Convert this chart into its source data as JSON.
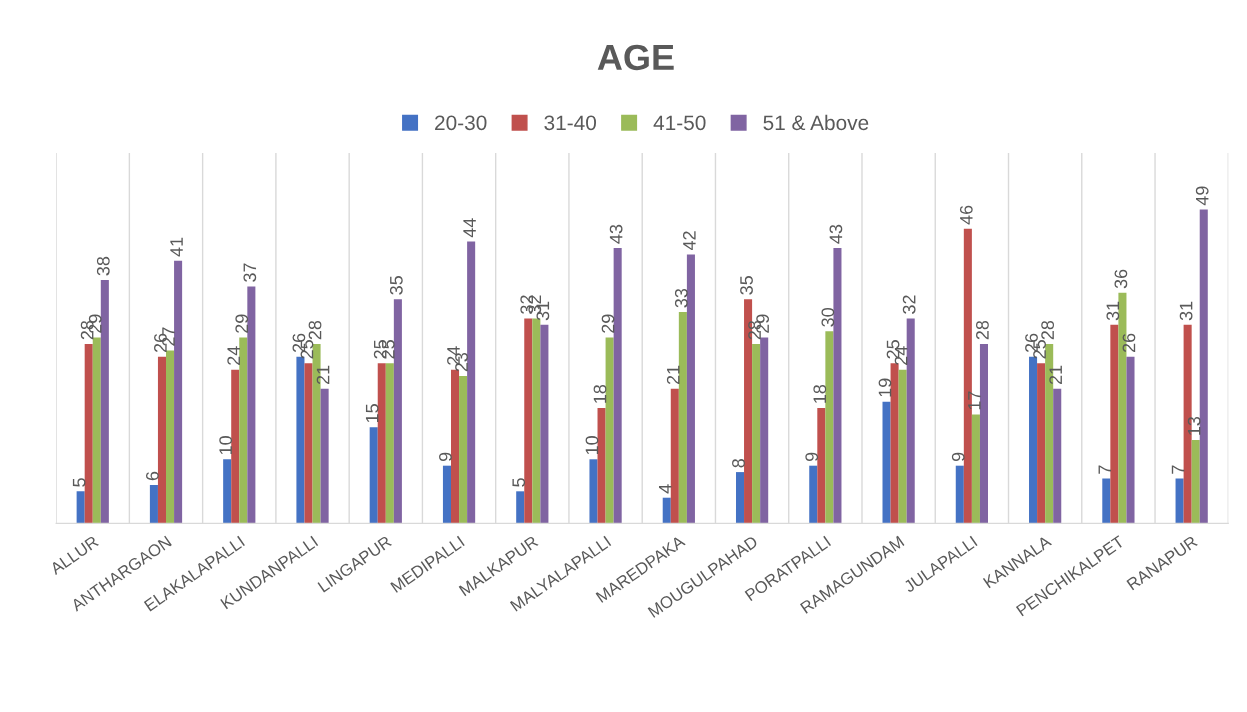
{
  "chart_data": {
    "type": "bar",
    "title": "AGE",
    "categories": [
      "ALLUR",
      "ANTHARGAON",
      "ELAKALAPALLI",
      "KUNDANPALLI",
      "LINGAPUR",
      "MEDIPALLI",
      "MALKAPUR",
      "MALYALAPALLI",
      "MAREDPAKA",
      "MOUGULPAHAD",
      "PORATPALLI",
      "RAMAGUNDAM",
      "JULAPALLI",
      "KANNALA",
      "PENCHIKALPET",
      "RANAPUR"
    ],
    "series": [
      {
        "name": "20-30",
        "color": "#4472c4",
        "values": [
          5,
          6,
          10,
          26,
          15,
          9,
          5,
          10,
          4,
          8,
          9,
          19,
          9,
          26,
          7,
          7
        ]
      },
      {
        "name": "31-40",
        "color": "#c0504d",
        "values": [
          28,
          26,
          24,
          25,
          25,
          24,
          32,
          18,
          21,
          35,
          18,
          25,
          46,
          25,
          31,
          31
        ]
      },
      {
        "name": "41-50",
        "color": "#9bbb59",
        "values": [
          29,
          27,
          29,
          28,
          25,
          23,
          32,
          29,
          33,
          28,
          30,
          24,
          17,
          28,
          36,
          13
        ]
      },
      {
        "name": "51 & Above",
        "color": "#8064a2",
        "values": [
          38,
          41,
          37,
          21,
          35,
          44,
          31,
          43,
          42,
          29,
          43,
          32,
          28,
          21,
          26,
          49
        ]
      }
    ],
    "data_labels": true,
    "legend": "top",
    "grid": "x"
  }
}
